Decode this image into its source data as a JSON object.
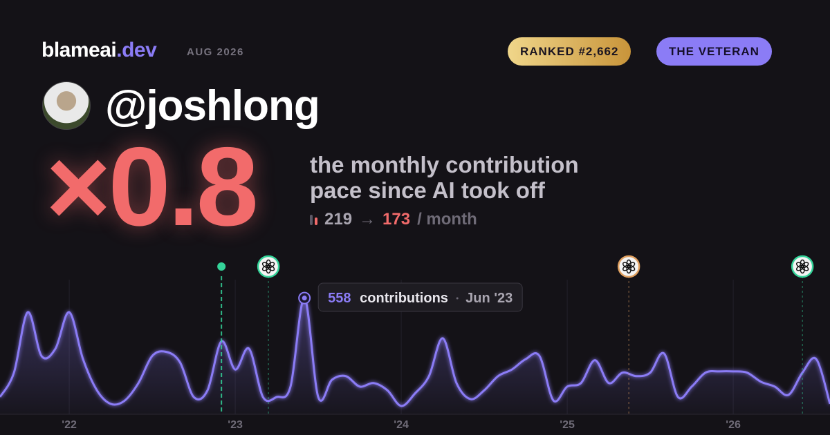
{
  "header": {
    "brand": "blameai",
    "brand_suffix": ".dev",
    "date": "AUG 2026",
    "rank_badge": "RANKED #2,662",
    "title_badge": "THE VETERAN"
  },
  "profile": {
    "handle": "@joshlong"
  },
  "summary": {
    "multiplier": "×0.8",
    "description": [
      "the monthly contribution",
      "pace since AI took off"
    ],
    "before": 219,
    "arrow": "→",
    "after": 173,
    "unit": "/ month"
  },
  "chart_data": {
    "type": "area",
    "color": "#8b7cf6",
    "x": [
      2021.583,
      2021.667,
      2021.75,
      2021.833,
      2021.917,
      2022,
      2022.083,
      2022.167,
      2022.25,
      2022.333,
      2022.417,
      2022.5,
      2022.583,
      2022.667,
      2022.75,
      2022.833,
      2022.917,
      2023,
      2023.083,
      2023.167,
      2023.25,
      2023.333,
      2023.417,
      2023.5,
      2023.583,
      2023.667,
      2023.75,
      2023.833,
      2023.917,
      2024,
      2024.083,
      2024.167,
      2024.25,
      2024.333,
      2024.417,
      2024.5,
      2024.583,
      2024.667,
      2024.75,
      2024.833,
      2024.917,
      2025,
      2025.083,
      2025.167,
      2025.25,
      2025.333,
      2025.417,
      2025.5,
      2025.583,
      2025.667,
      2025.75,
      2025.833,
      2025.917,
      2026,
      2026.083,
      2026.167,
      2026.25,
      2026.333,
      2026.417,
      2026.5,
      2026.583
    ],
    "values": [
      83,
      200,
      490,
      280,
      315,
      490,
      265,
      115,
      50,
      65,
      150,
      280,
      300,
      250,
      83,
      115,
      350,
      215,
      315,
      83,
      83,
      133,
      558,
      83,
      166,
      183,
      133,
      150,
      115,
      40,
      100,
      183,
      365,
      150,
      73,
      115,
      183,
      215,
      265,
      280,
      66,
      133,
      150,
      260,
      150,
      200,
      183,
      200,
      292,
      83,
      133,
      200,
      206,
      206,
      200,
      156,
      133,
      93,
      200,
      265,
      50
    ],
    "xlim": [
      2021.583,
      2026.583
    ],
    "ylim": [
      0,
      600
    ],
    "xticks": [
      {
        "value": 2022,
        "label": "'22"
      },
      {
        "value": 2023,
        "label": "'23"
      },
      {
        "value": 2024,
        "label": "'24"
      },
      {
        "value": 2025,
        "label": "'25"
      },
      {
        "value": 2026,
        "label": "'26"
      }
    ],
    "grid": true,
    "tooltip": {
      "label": "contributions",
      "date": "Jun '23"
    },
    "events": [
      {
        "x": 2022.917,
        "color": "#34d399",
        "style": "dot"
      },
      {
        "x": 2023.2,
        "color": "#34d399",
        "style": "badge"
      },
      {
        "x": 2025.371,
        "color": "#e0a060",
        "style": "badge"
      },
      {
        "x": 2026.417,
        "color": "#34d399",
        "style": "badge"
      }
    ]
  }
}
